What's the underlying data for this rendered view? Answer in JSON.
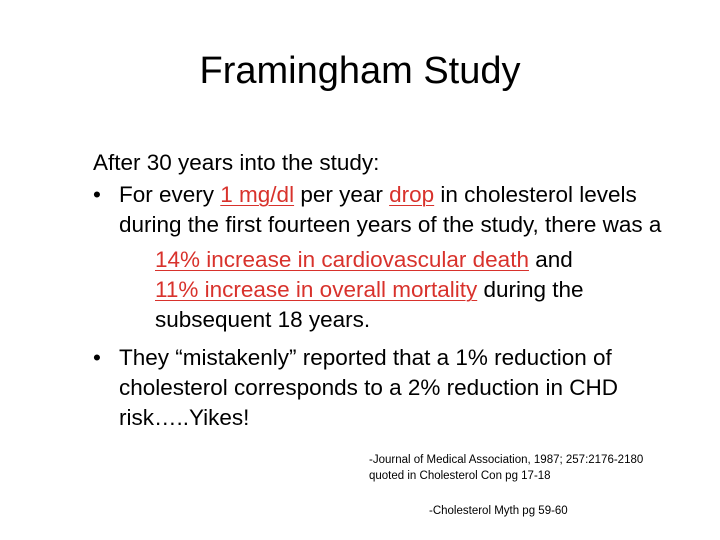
{
  "title": "Framingham Study",
  "intro": "After 30 years into the study:",
  "bullet_symbol": "•",
  "bullet1": {
    "pre": "For every ",
    "link1": "1 mg/dl",
    "mid": " per year ",
    "link2": "drop",
    "post": " in cholesterol levels during the first fourteen years of the study, there was a",
    "sub_link1": "14% increase in cardiovascular death",
    "sub_and": " and",
    "sub_link2": "11% increase in overall mortality",
    "sub_post": " during the subsequent 18 years."
  },
  "bullet2": {
    "text": "They “mistakenly” reported that a 1% reduction of cholesterol corresponds to a 2% reduction in CHD risk…..Yikes!"
  },
  "citation1": {
    "line1": "-Journal of Medical Association, 1987; 257:2176-2180",
    "line2": "quoted in Cholesterol Con pg 17-18"
  },
  "citation2": "-Cholesterol Myth pg 59-60",
  "colors": {
    "accent_red": "#d8322c",
    "text": "#000000",
    "background": "#ffffff"
  }
}
